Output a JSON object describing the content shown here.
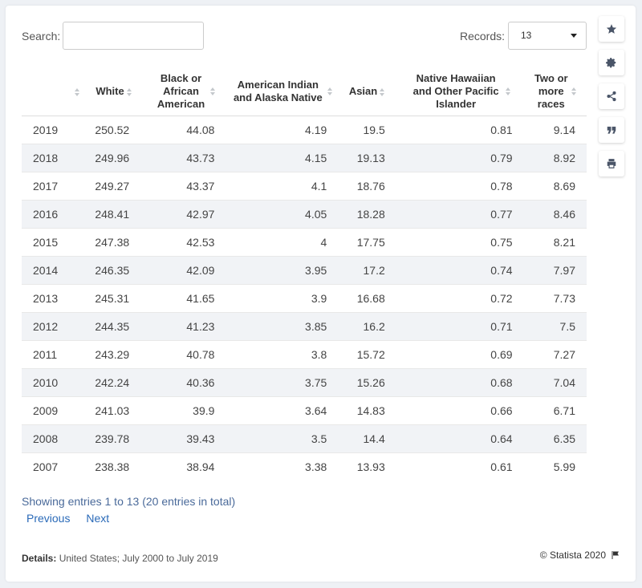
{
  "search": {
    "label": "Search:",
    "value": "",
    "placeholder": ""
  },
  "records": {
    "label": "Records:",
    "value": "13"
  },
  "side_buttons": [
    "star-icon",
    "gear-icon",
    "share-icon",
    "quote-icon",
    "print-icon"
  ],
  "table": {
    "headers": [
      "",
      "White",
      "Black or African American",
      "American Indian and Alaska Native",
      "Asian",
      "Native Hawaiian and Other Pacific Islander",
      "Two or more races"
    ],
    "rows": [
      [
        "2019",
        "250.52",
        "44.08",
        "4.19",
        "19.5",
        "0.81",
        "9.14"
      ],
      [
        "2018",
        "249.96",
        "43.73",
        "4.15",
        "19.13",
        "0.79",
        "8.92"
      ],
      [
        "2017",
        "249.27",
        "43.37",
        "4.1",
        "18.76",
        "0.78",
        "8.69"
      ],
      [
        "2016",
        "248.41",
        "42.97",
        "4.05",
        "18.28",
        "0.77",
        "8.46"
      ],
      [
        "2015",
        "247.38",
        "42.53",
        "4",
        "17.75",
        "0.75",
        "8.21"
      ],
      [
        "2014",
        "246.35",
        "42.09",
        "3.95",
        "17.2",
        "0.74",
        "7.97"
      ],
      [
        "2013",
        "245.31",
        "41.65",
        "3.9",
        "16.68",
        "0.72",
        "7.73"
      ],
      [
        "2012",
        "244.35",
        "41.23",
        "3.85",
        "16.2",
        "0.71",
        "7.5"
      ],
      [
        "2011",
        "243.29",
        "40.78",
        "3.8",
        "15.72",
        "0.69",
        "7.27"
      ],
      [
        "2010",
        "242.24",
        "40.36",
        "3.75",
        "15.26",
        "0.68",
        "7.04"
      ],
      [
        "2009",
        "241.03",
        "39.9",
        "3.64",
        "14.83",
        "0.66",
        "6.71"
      ],
      [
        "2008",
        "239.78",
        "39.43",
        "3.5",
        "14.4",
        "0.64",
        "6.35"
      ],
      [
        "2007",
        "238.38",
        "38.94",
        "3.38",
        "13.93",
        "0.61",
        "5.99"
      ]
    ]
  },
  "footer": {
    "showing": "Showing entries 1 to 13 (20 entries in total)",
    "previous": "Previous",
    "next": "Next",
    "details_label": "Details:",
    "details_text": " United States; July 2000 to July 2019",
    "copyright": "© Statista 2020"
  },
  "colors": {
    "link": "#2a6ab8",
    "row_alt": "#f1f3f6",
    "background": "#eef1f5"
  }
}
